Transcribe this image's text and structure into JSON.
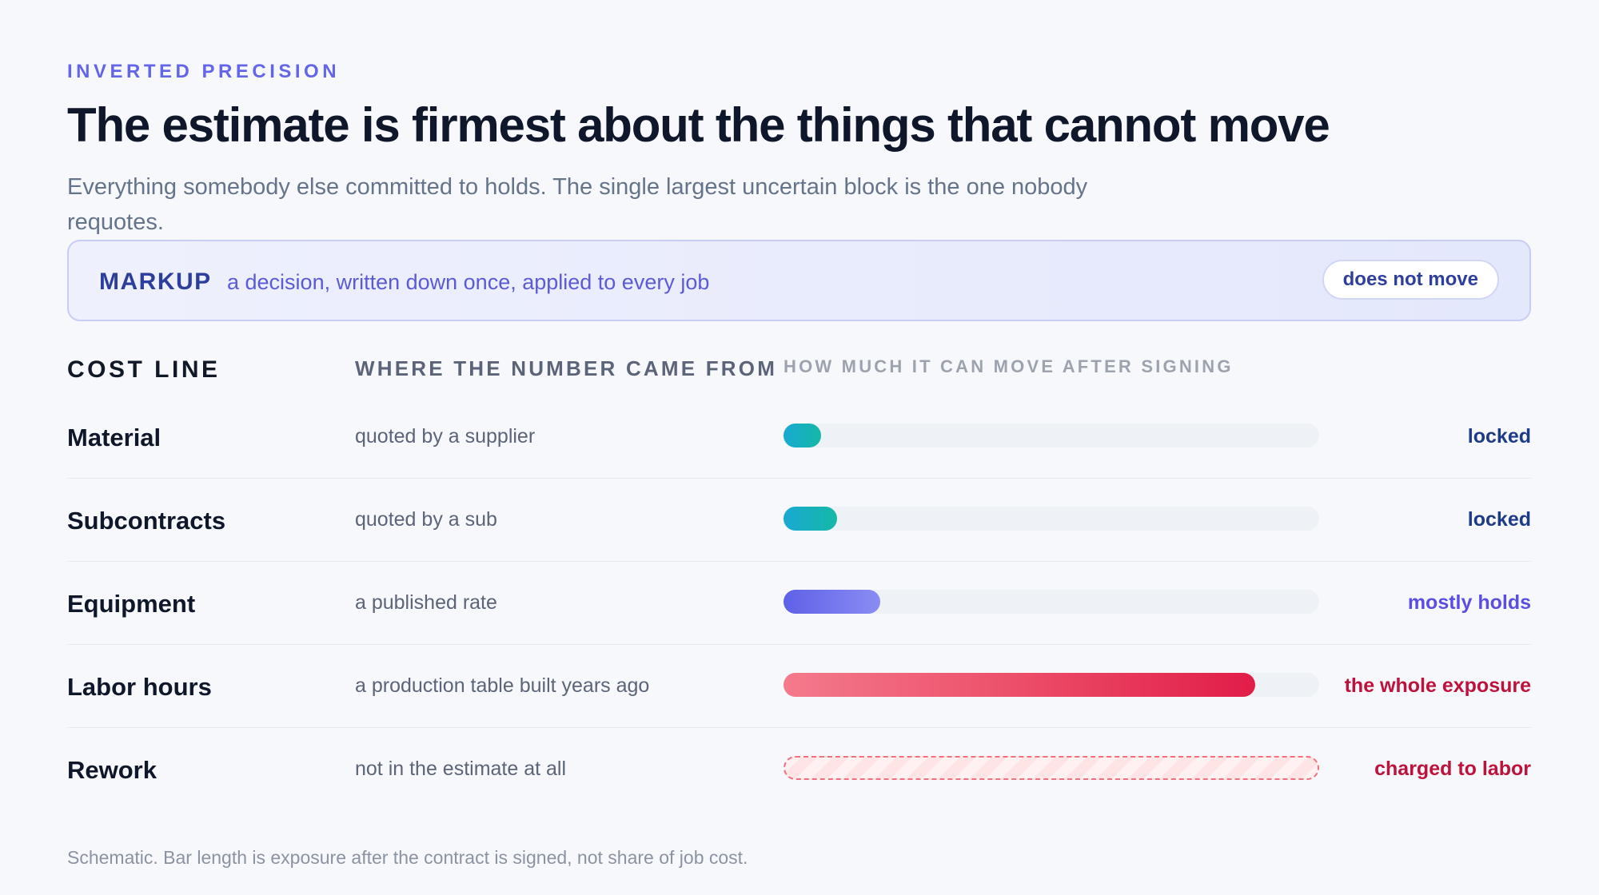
{
  "eyebrow": "INVERTED PRECISION",
  "title": "The estimate is firmest about the things that cannot move",
  "subtitle": "Everything somebody else committed to holds. The single largest uncertain block is the one nobody requotes.",
  "markup": {
    "label": "MARKUP",
    "description": "a decision, written down once, applied to every job",
    "badge": "does not move"
  },
  "headers": {
    "cost_line": "COST LINE",
    "source": "WHERE THE NUMBER CAME FROM",
    "movement": "HOW MUCH IT CAN MOVE AFTER SIGNING"
  },
  "colors": {
    "locked": "#1e3a8a",
    "mostly_holds": "#5b4fe0",
    "exposure": "#be123c",
    "teal_bar": "#14b8a6",
    "indigo_bar": "#6366f1",
    "red_bar": "#e11d48"
  },
  "chart_data": {
    "type": "bar",
    "orientation": "horizontal",
    "schematic": true,
    "categories": [
      "Material",
      "Subcontracts",
      "Equipment",
      "Labor hours",
      "Rework"
    ],
    "sources": [
      "quoted by a supplier",
      "quoted by a sub",
      "a published rate",
      "a production table built years ago",
      "not in the estimate at all"
    ],
    "values": [
      0.07,
      0.1,
      0.18,
      0.88,
      1.0
    ],
    "statuses": [
      "locked",
      "locked",
      "mostly holds",
      "the whole exposure",
      "charged to labor"
    ],
    "styles": [
      "teal",
      "teal",
      "indigo",
      "red",
      "dashed"
    ],
    "xlim": [
      0,
      1
    ]
  },
  "footnote": "Schematic. Bar length is exposure after the contract is signed, not share of job cost."
}
